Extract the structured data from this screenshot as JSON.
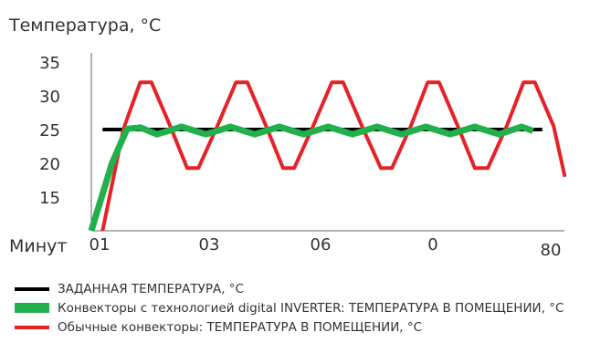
{
  "chart_data": {
    "type": "line",
    "title": "Температура, °C",
    "xlabel": "Минут",
    "x_tick_labels": [
      "01",
      "03",
      "06",
      "0",
      "80"
    ],
    "y_ticks": [
      15,
      20,
      25,
      30,
      35
    ],
    "ylim": [
      10,
      35
    ],
    "series": [
      {
        "name": "ЗАДАННАЯ ТЕМПЕРАТУРА, °C",
        "color": "#000000",
        "points": [
          [
            0.3,
            25.0
          ],
          [
            12,
            25.0
          ]
        ]
      },
      {
        "name": "Конвекторы с технологией digital INVERTER: ТЕМПЕРАТУРА В ПОМЕЩЕНИИ, °C",
        "color": "#21b04b",
        "points": [
          [
            0,
            10
          ],
          [
            0.55,
            20
          ],
          [
            0.95,
            25.1
          ],
          [
            1.3,
            25.3
          ],
          [
            1.75,
            24.3
          ],
          [
            2.4,
            25.4
          ],
          [
            3.05,
            24.3
          ],
          [
            3.7,
            25.4
          ],
          [
            4.35,
            24.3
          ],
          [
            5.0,
            25.4
          ],
          [
            5.65,
            24.3
          ],
          [
            6.3,
            25.4
          ],
          [
            6.95,
            24.3
          ],
          [
            7.6,
            25.4
          ],
          [
            8.25,
            24.3
          ],
          [
            8.9,
            25.4
          ],
          [
            9.55,
            24.3
          ],
          [
            10.2,
            25.4
          ],
          [
            10.85,
            24.3
          ],
          [
            11.45,
            25.4
          ],
          [
            11.75,
            24.8
          ]
        ]
      },
      {
        "name": "Обычные конвекторы: ТЕМПЕРАТУРА В ПОМЕЩЕНИИ, °C",
        "color": "#e52228",
        "points": [
          [
            0.3,
            10
          ],
          [
            0.85,
            25
          ],
          [
            1.3,
            32
          ],
          [
            1.6,
            32
          ],
          [
            2.1,
            25.5
          ],
          [
            2.55,
            19.3
          ],
          [
            2.85,
            19.3
          ],
          [
            3.35,
            25.5
          ],
          [
            3.85,
            32
          ],
          [
            4.15,
            32
          ],
          [
            4.65,
            25.5
          ],
          [
            5.1,
            19.3
          ],
          [
            5.4,
            19.3
          ],
          [
            5.9,
            25.5
          ],
          [
            6.4,
            32
          ],
          [
            6.7,
            32
          ],
          [
            7.2,
            25.5
          ],
          [
            7.7,
            19.3
          ],
          [
            8.0,
            19.3
          ],
          [
            8.5,
            25.5
          ],
          [
            8.95,
            32
          ],
          [
            9.25,
            32
          ],
          [
            9.75,
            25.5
          ],
          [
            10.2,
            19.3
          ],
          [
            10.55,
            19.3
          ],
          [
            11.05,
            25.5
          ],
          [
            11.5,
            32
          ],
          [
            11.8,
            32
          ],
          [
            12.3,
            25.5
          ],
          [
            12.6,
            18
          ]
        ]
      }
    ]
  }
}
